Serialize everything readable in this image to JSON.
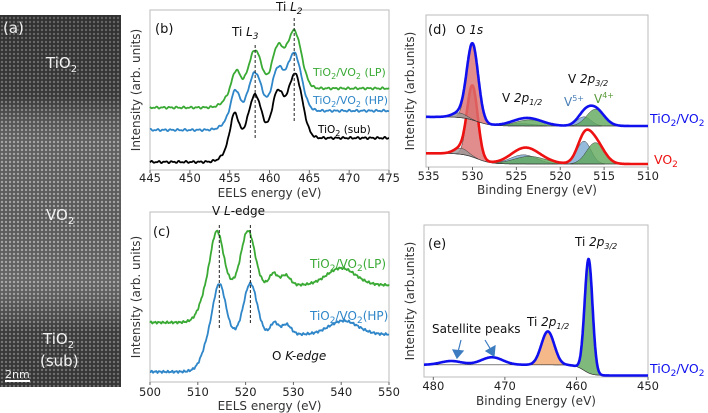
{
  "panel_a": {
    "label": "(a)",
    "top_layer": [
      "TiO",
      "2"
    ],
    "middle_layer": [
      "VO",
      "2"
    ],
    "bottom_layer": [
      "TiO",
      "2"
    ],
    "bottom_layer_note": "(sub)",
    "scale_bar": "2nm"
  },
  "panel_b": {
    "label": "(b)",
    "peak_l3": [
      "Ti ",
      "L",
      "3"
    ],
    "peak_l2": [
      "Ti ",
      "L",
      "2"
    ],
    "legend_lp": [
      "TiO",
      "2",
      "/VO",
      "2",
      " (LP)"
    ],
    "legend_hp": [
      "TiO",
      "2",
      "/VO",
      "2",
      " (HP)"
    ],
    "legend_sub": [
      "TiO",
      "2",
      " (sub)"
    ]
  },
  "panel_c": {
    "label": "(c)",
    "edge_title": [
      "V ",
      "L",
      "-edge"
    ],
    "legend_lp": [
      "TiO",
      "2",
      "/VO",
      "2",
      "(LP)"
    ],
    "legend_hp": [
      "TiO",
      "2",
      "/VO",
      "2",
      "(HP)"
    ],
    "o_edge": [
      "O ",
      "K-edge"
    ]
  },
  "panel_d": {
    "label": "(d)",
    "o1s": [
      "O ",
      "1s"
    ],
    "v2p12": [
      "V ",
      "2p",
      "1/2"
    ],
    "v2p32": [
      "V ",
      "2p",
      "3/2"
    ],
    "v5": [
      "V",
      "5+"
    ],
    "v4": [
      "V",
      "4+"
    ],
    "label_top": [
      "TiO",
      "2",
      "/VO",
      "2"
    ],
    "label_bottom": [
      "VO",
      "2"
    ]
  },
  "panel_e": {
    "label": "(e)",
    "ti2p32": [
      "Ti ",
      "2p",
      "3/2"
    ],
    "ti2p12": [
      "Ti ",
      "2p",
      "1/2"
    ],
    "satellite": "Satellite peaks",
    "sample_label": [
      "TiO",
      "2",
      "/VO",
      "2"
    ]
  },
  "colors": {
    "green": "#3aaa35",
    "blue": "#2f86c8",
    "black": "#000000",
    "xps_blue": "#1010ee",
    "xps_red": "#ee1111",
    "fit_red": "#d97070",
    "fit_blue": "#7aa9d2",
    "fit_green": "#5fa85a",
    "fit_orange": "#f3a66b",
    "fit_gray": "#999999"
  },
  "chart_data": [
    {
      "id": "b",
      "type": "line",
      "xlabel": "EELS energy (eV)",
      "ylabel": "Intensity (arb. units)",
      "xlim": [
        445,
        475
      ],
      "ylim": [
        0,
        1
      ],
      "xticks": [
        445,
        450,
        455,
        460,
        465,
        470,
        475
      ],
      "markers": [
        458.2,
        463.1
      ],
      "series": [
        {
          "name": "TiO2 (sub)",
          "color": "#000000",
          "offset": 0.05,
          "steps": [
            {
              "center": 454.5,
              "height": 0.15,
              "width": 0.5
            }
          ],
          "peaks": [
            {
              "center": 455.6,
              "amp": 0.17,
              "sigma": 0.5
            },
            {
              "center": 458.2,
              "amp": 0.27,
              "sigma": 0.8
            },
            {
              "center": 461.0,
              "amp": 0.28,
              "sigma": 0.7
            },
            {
              "center": 463.2,
              "amp": 0.4,
              "sigma": 0.9
            }
          ]
        },
        {
          "name": "TiO2/VO2 (HP)",
          "color": "#2f86c8",
          "offset": 0.25,
          "steps": [
            {
              "center": 454.5,
              "height": 0.12,
              "width": 0.5
            }
          ],
          "peaks": [
            {
              "center": 455.7,
              "amp": 0.14,
              "sigma": 0.5
            },
            {
              "center": 458.2,
              "amp": 0.24,
              "sigma": 0.8
            },
            {
              "center": 461.0,
              "amp": 0.25,
              "sigma": 0.7
            },
            {
              "center": 463.1,
              "amp": 0.36,
              "sigma": 0.9
            }
          ]
        },
        {
          "name": "TiO2/VO2 (LP)",
          "color": "#3aaa35",
          "offset": 0.39,
          "steps": [
            {
              "center": 454.5,
              "height": 0.12,
              "width": 0.5
            }
          ],
          "peaks": [
            {
              "center": 455.8,
              "amp": 0.12,
              "sigma": 0.5
            },
            {
              "center": 458.2,
              "amp": 0.24,
              "sigma": 0.8
            },
            {
              "center": 461.0,
              "amp": 0.25,
              "sigma": 0.7
            },
            {
              "center": 463.1,
              "amp": 0.36,
              "sigma": 0.9
            }
          ]
        }
      ]
    },
    {
      "id": "c",
      "type": "line",
      "xlabel": "EELS energy (eV)",
      "ylabel": "Intensity (arb. units)",
      "xlim": [
        500,
        550
      ],
      "ylim": [
        0,
        1
      ],
      "xticks": [
        500,
        510,
        520,
        530,
        540,
        550
      ],
      "markers": [
        514.5,
        521.0
      ],
      "series": [
        {
          "name": "TiO2/VO2 (HP)",
          "color": "#2f86c8",
          "offset": 0.06,
          "steps": [
            {
              "center": 511,
              "height": 0.22,
              "width": 0.8
            }
          ],
          "peaks": [
            {
              "center": 514.5,
              "amp": 0.3,
              "sigma": 1.3
            },
            {
              "center": 521.0,
              "amp": 0.3,
              "sigma": 1.4
            },
            {
              "center": 526.0,
              "amp": 0.07,
              "sigma": 0.8
            },
            {
              "center": 528.5,
              "amp": 0.06,
              "sigma": 1.0
            },
            {
              "center": 540.5,
              "amp": 0.08,
              "sigma": 3.0
            }
          ]
        },
        {
          "name": "TiO2/VO2 (LP)",
          "color": "#3aaa35",
          "offset": 0.35,
          "steps": [
            {
              "center": 510.5,
              "height": 0.22,
              "width": 0.8
            }
          ],
          "peaks": [
            {
              "center": 514.0,
              "amp": 0.32,
              "sigma": 1.3
            },
            {
              "center": 520.5,
              "amp": 0.32,
              "sigma": 1.4
            },
            {
              "center": 525.8,
              "amp": 0.07,
              "sigma": 0.8
            },
            {
              "center": 528.3,
              "amp": 0.06,
              "sigma": 1.0
            },
            {
              "center": 540.0,
              "amp": 0.1,
              "sigma": 3.0
            }
          ]
        }
      ]
    },
    {
      "id": "d",
      "type": "line",
      "xlabel": "Binding Energy (eV)",
      "ylabel": "Intensity (arb.units)",
      "xlim": [
        535.3,
        510
      ],
      "ylim": [
        0,
        1
      ],
      "xticks": [
        535,
        530,
        525,
        520,
        515,
        510
      ],
      "series": [
        {
          "name": "VO2",
          "color": "#ee1111",
          "offset": 0.02,
          "steps": [
            {
              "center": 529.5,
              "height": 0.07,
              "width": 0.8
            }
          ],
          "peaks": [
            {
              "center": 530.0,
              "amp": 0.46,
              "sigma": 0.6,
              "fill": "#d97070"
            },
            {
              "center": 531.3,
              "amp": 0.04,
              "sigma": 0.8,
              "fill": "#999999"
            },
            {
              "center": 524.2,
              "amp": 0.06,
              "sigma": 1.5,
              "fill": "#7aa9d2"
            },
            {
              "center": 523.5,
              "amp": 0.05,
              "sigma": 1.8,
              "fill": "#5fa85a"
            },
            {
              "center": 517.3,
              "amp": 0.15,
              "sigma": 0.8,
              "fill": "#7aa9d2"
            },
            {
              "center": 516.0,
              "amp": 0.14,
              "sigma": 1.0,
              "fill": "#5fa85a"
            }
          ]
        },
        {
          "name": "TiO2/VO2",
          "color": "#1010ee",
          "offset": 0.27,
          "steps": [
            {
              "center": 529.5,
              "height": 0.06,
              "width": 0.8
            }
          ],
          "peaks": [
            {
              "center": 530.0,
              "amp": 0.5,
              "sigma": 0.65,
              "fill": "#d97070"
            },
            {
              "center": 531.5,
              "amp": 0.03,
              "sigma": 0.8,
              "fill": "#999999"
            },
            {
              "center": 524.5,
              "amp": 0.015,
              "sigma": 1.5,
              "fill": "#7aa9d2"
            },
            {
              "center": 523.5,
              "amp": 0.04,
              "sigma": 1.6,
              "fill": "#5fa85a"
            },
            {
              "center": 517.3,
              "amp": 0.06,
              "sigma": 0.8,
              "fill": "#7aa9d2"
            },
            {
              "center": 516.0,
              "amp": 0.11,
              "sigma": 1.0,
              "fill": "#5fa85a"
            }
          ]
        }
      ]
    },
    {
      "id": "e",
      "type": "line",
      "xlabel": "Binding Energy (eV)",
      "ylabel": "Intensity (arb.units)",
      "xlim": [
        481.3,
        450
      ],
      "ylim": [
        0,
        1
      ],
      "xticks": [
        480,
        470,
        460,
        450
      ],
      "series": [
        {
          "name": "TiO2/VO2",
          "color": "#1010ee",
          "offset": 0.01,
          "steps": [
            {
              "center": 459,
              "height": 0.07,
              "width": 0.6
            }
          ],
          "peaks": [
            {
              "center": 458.3,
              "amp": 0.75,
              "sigma": 0.55,
              "fill": "#5fa85a"
            },
            {
              "center": 464.0,
              "amp": 0.22,
              "sigma": 0.9,
              "fill": "#f3a66b"
            },
            {
              "center": 471.8,
              "amp": 0.05,
              "sigma": 1.5
            },
            {
              "center": 477.5,
              "amp": 0.025,
              "sigma": 1.5
            }
          ]
        }
      ]
    }
  ]
}
